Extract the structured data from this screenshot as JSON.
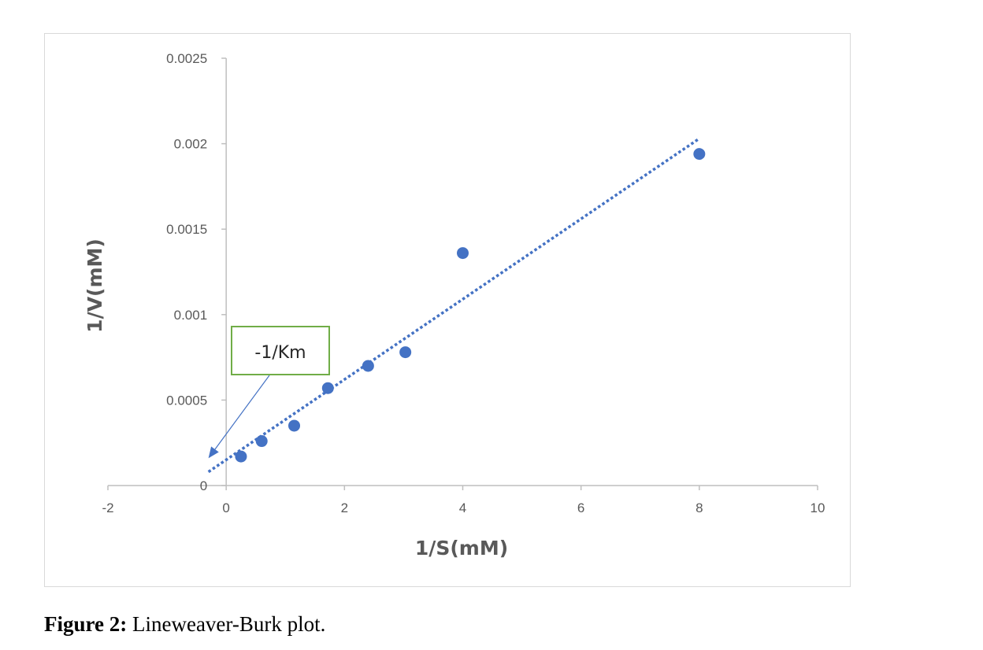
{
  "chart_data": {
    "type": "scatter",
    "xlabel": "1/S(mM)",
    "ylabel": "1/V(mM)",
    "xlim": [
      -2,
      10
    ],
    "ylim": [
      0,
      0.0025
    ],
    "x_ticks": [
      "-2",
      "0",
      "2",
      "4",
      "6",
      "8",
      "10"
    ],
    "y_ticks": [
      "0",
      "0.0005",
      "0.001",
      "0.0015",
      "0.002",
      "0.0025"
    ],
    "grid": false,
    "points": [
      {
        "x": 0.25,
        "y": 0.00017
      },
      {
        "x": 0.6,
        "y": 0.00026
      },
      {
        "x": 1.15,
        "y": 0.00035
      },
      {
        "x": 1.72,
        "y": 0.00057
      },
      {
        "x": 2.4,
        "y": 0.0007
      },
      {
        "x": 3.03,
        "y": 0.00078
      },
      {
        "x": 4.0,
        "y": 0.00136
      },
      {
        "x": 8.0,
        "y": 0.00194
      }
    ],
    "trendline": {
      "style": "dotted",
      "x_start": -0.3,
      "y_start": 8e-05,
      "x_end": 8.0,
      "y_end": 0.00203
    },
    "annotation": {
      "text": "-1/Km",
      "points_to": {
        "x": -0.3,
        "y": 0.00016
      }
    },
    "colors": {
      "points": "#4472c4",
      "trendline": "#4472c4",
      "annotation_border": "#70ad47",
      "axis": "#bfbfbf"
    }
  },
  "caption": {
    "label": "Figure 2:",
    "text": " Lineweaver-Burk plot."
  }
}
